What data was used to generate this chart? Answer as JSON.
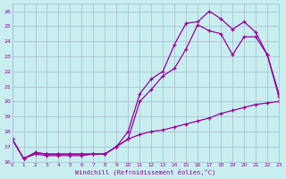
{
  "xlabel": "Windchill (Refroidissement éolien,°C)",
  "bg_color": "#c8eef0",
  "line_color": "#990099",
  "grid_color": "#aabbcc",
  "xlim": [
    0,
    23
  ],
  "ylim": [
    16,
    26.5
  ],
  "xticks": [
    0,
    1,
    2,
    3,
    4,
    5,
    6,
    7,
    8,
    9,
    10,
    11,
    12,
    13,
    14,
    15,
    16,
    17,
    18,
    19,
    20,
    21,
    22,
    23
  ],
  "yticks": [
    16,
    17,
    18,
    19,
    20,
    21,
    22,
    23,
    24,
    25,
    26
  ],
  "series1_x": [
    0,
    1,
    2,
    3,
    4,
    5,
    6,
    7,
    8,
    9,
    10,
    11,
    12,
    13,
    14,
    15,
    16,
    17,
    18,
    19,
    20,
    21,
    22,
    23
  ],
  "series1_y": [
    17.5,
    16.2,
    16.6,
    16.5,
    16.5,
    16.5,
    16.5,
    16.5,
    16.5,
    17.0,
    18.0,
    20.5,
    21.5,
    22.0,
    23.8,
    25.2,
    25.3,
    26.0,
    25.5,
    24.8,
    25.3,
    24.6,
    23.1,
    20.3
  ],
  "series2_x": [
    0,
    1,
    2,
    3,
    4,
    5,
    6,
    7,
    8,
    9,
    10,
    11,
    12,
    13,
    14,
    15,
    16,
    17,
    18,
    19,
    20,
    21,
    22,
    23
  ],
  "series2_y": [
    17.5,
    16.2,
    16.6,
    16.5,
    16.5,
    16.5,
    16.5,
    16.5,
    16.5,
    17.0,
    17.5,
    20.0,
    20.8,
    21.7,
    22.2,
    23.5,
    25.1,
    24.7,
    24.5,
    23.1,
    24.3,
    24.3,
    23.1,
    20.5
  ],
  "series3_x": [
    0,
    1,
    2,
    3,
    4,
    5,
    6,
    7,
    8,
    9,
    10,
    11,
    12,
    13,
    14,
    15,
    16,
    17,
    18,
    19,
    20,
    21,
    22,
    23
  ],
  "series3_y": [
    17.5,
    16.2,
    16.5,
    16.4,
    16.4,
    16.4,
    16.4,
    16.5,
    16.5,
    17.0,
    17.5,
    17.8,
    18.0,
    18.1,
    18.3,
    18.5,
    18.7,
    18.9,
    19.2,
    19.4,
    19.6,
    19.8,
    19.9,
    20.0
  ]
}
